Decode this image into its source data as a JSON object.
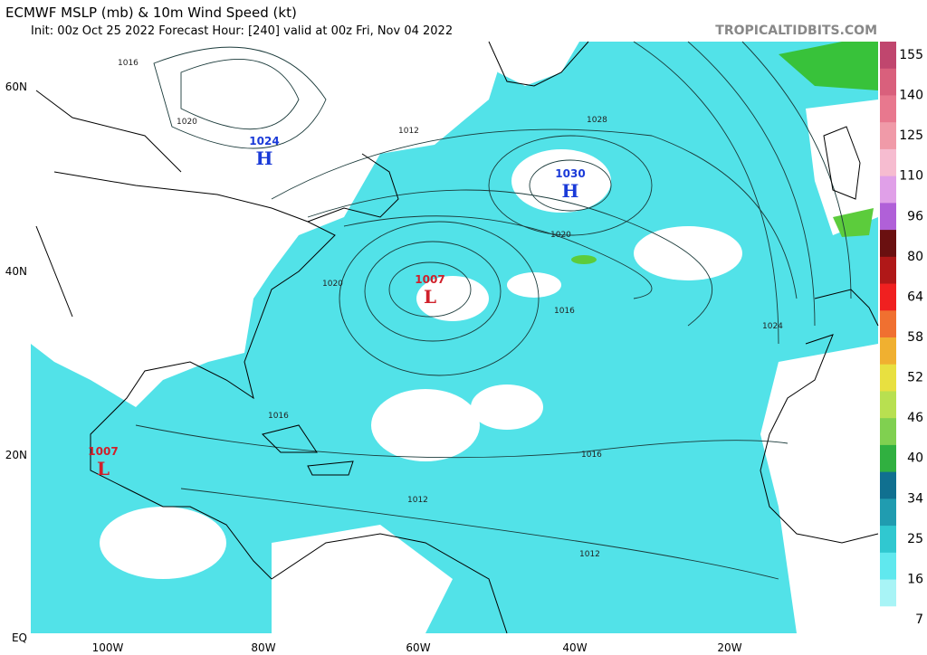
{
  "header": {
    "title": "ECMWF MSLP (mb) & 10m Wind Speed (kt)",
    "subtitle": "Init: 00z Oct 25 2022   Forecast Hour: [240]   valid at 00z Fri, Nov 04 2022",
    "brand": "TROPICALTIDBITS.COM"
  },
  "axes": {
    "lat": [
      "60N",
      "40N",
      "20N",
      "EQ"
    ],
    "lon": [
      "100W",
      "80W",
      "60W",
      "40W",
      "20W"
    ]
  },
  "colorbar_labels": [
    "155",
    "140",
    "125",
    "110",
    "96",
    "80",
    "64",
    "58",
    "52",
    "46",
    "40",
    "34",
    "25",
    "16",
    "7"
  ],
  "centers": [
    {
      "value": "1024",
      "letter": "H"
    },
    {
      "value": "1030",
      "letter": "H"
    },
    {
      "value": "1007",
      "letter": "L"
    },
    {
      "value": "1007",
      "letter": "L"
    }
  ],
  "isobar_labels": [
    "1016",
    "1020",
    "1012",
    "1028",
    "1020",
    "1020",
    "1016",
    "1024",
    "1016",
    "1016",
    "1012",
    "1012"
  ]
}
